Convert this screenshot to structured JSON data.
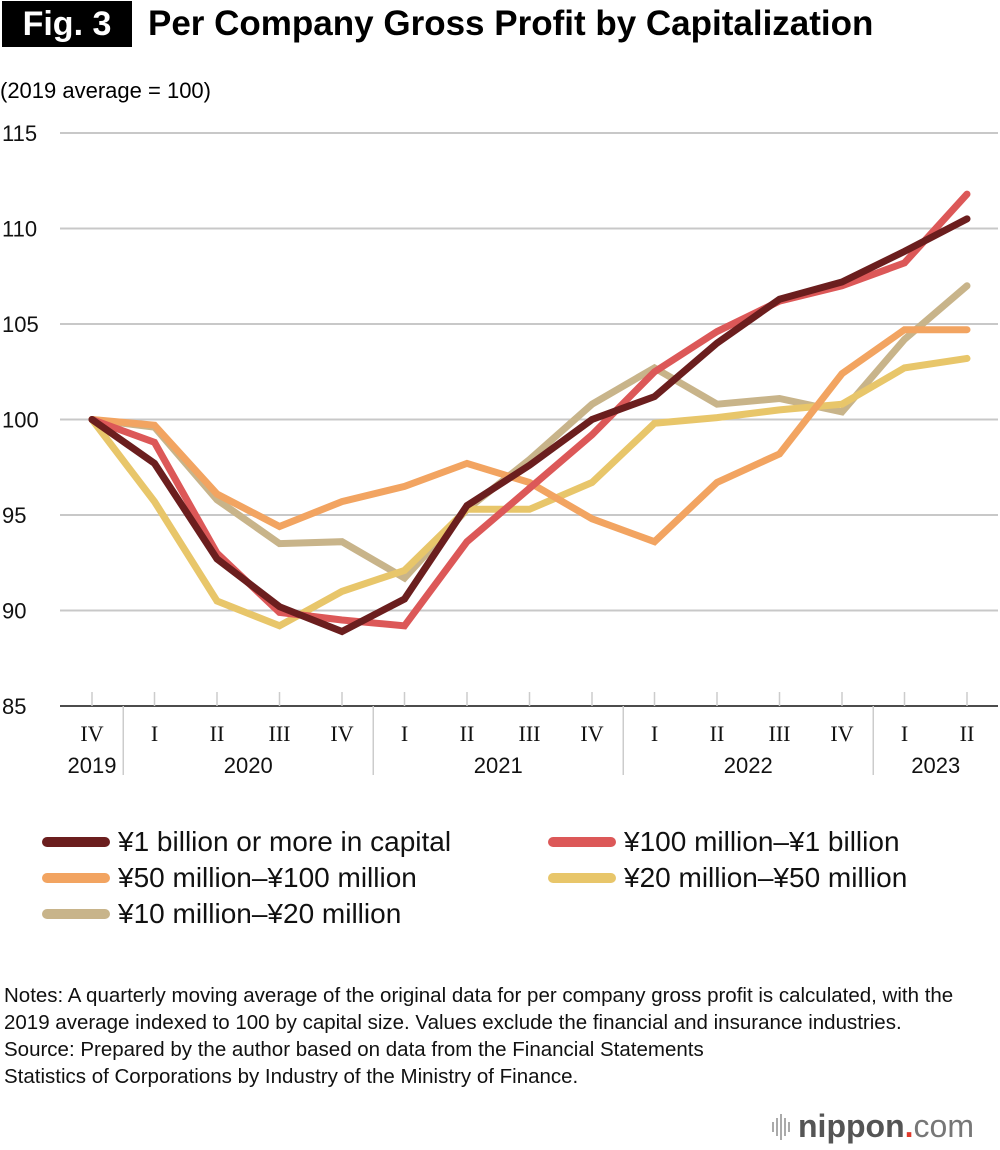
{
  "header": {
    "fig_label": "Fig. 3",
    "title": "Per Company Gross Profit by Capitalization",
    "unit_note": "(2019 average = 100)"
  },
  "chart_data": {
    "type": "line",
    "title": "Per Company Gross Profit by Capitalization",
    "ylabel": "(2019 average = 100)",
    "xlabel": "",
    "ylim": [
      85,
      115
    ],
    "yticks": [
      85,
      90,
      95,
      100,
      105,
      110,
      115
    ],
    "grid": true,
    "legend_position": "bottom",
    "x": [
      "IV 2019",
      "I 2020",
      "II 2020",
      "III 2020",
      "IV 2020",
      "I 2021",
      "II 2021",
      "III 2021",
      "IV 2021",
      "I 2022",
      "II 2022",
      "III 2022",
      "IV 2022",
      "I 2023",
      "II 2023"
    ],
    "quarter_labels": [
      "IV",
      "I",
      "II",
      "III",
      "IV",
      "I",
      "II",
      "III",
      "IV",
      "I",
      "II",
      "III",
      "IV",
      "I",
      "II"
    ],
    "year_groups": [
      {
        "label": "2019",
        "start": 0,
        "end": 0
      },
      {
        "label": "2020",
        "start": 1,
        "end": 4
      },
      {
        "label": "2021",
        "start": 5,
        "end": 8
      },
      {
        "label": "2022",
        "start": 9,
        "end": 12
      },
      {
        "label": "2023",
        "start": 13,
        "end": 14
      }
    ],
    "series": [
      {
        "name": "¥10 million–¥20 million",
        "color": "#c8b48a",
        "values": [
          100.0,
          99.6,
          95.8,
          93.5,
          93.6,
          91.7,
          95.3,
          97.9,
          100.8,
          102.7,
          100.8,
          101.1,
          100.4,
          104.2,
          107.0
        ]
      },
      {
        "name": "¥20 million–¥50 million",
        "color": "#e8c66a",
        "values": [
          100.0,
          95.7,
          90.5,
          89.2,
          91.0,
          92.1,
          95.3,
          95.3,
          96.7,
          99.8,
          100.1,
          100.5,
          100.8,
          102.7,
          103.2
        ]
      },
      {
        "name": "¥50 million–¥100 million",
        "color": "#f2a461",
        "values": [
          100.0,
          99.7,
          96.1,
          94.4,
          95.7,
          96.5,
          97.7,
          96.7,
          94.8,
          93.6,
          96.7,
          98.2,
          102.4,
          104.7,
          104.7
        ]
      },
      {
        "name": "¥100 million–¥1 billion",
        "color": "#dc5858",
        "values": [
          100.0,
          98.8,
          93.0,
          89.9,
          89.5,
          89.2,
          93.6,
          96.4,
          99.2,
          102.5,
          104.6,
          106.2,
          107.0,
          108.2,
          111.8
        ]
      },
      {
        "name": "¥1 billion or more in capital",
        "color": "#6b1e1e",
        "values": [
          100.0,
          97.7,
          92.7,
          90.2,
          88.9,
          90.6,
          95.5,
          97.6,
          100.0,
          101.2,
          104.0,
          106.3,
          107.2,
          108.8,
          110.5
        ]
      }
    ]
  },
  "legend": [
    {
      "label": "¥1 billion or more in capital",
      "color": "#6b1e1e"
    },
    {
      "label": "¥100 million–¥1 billion",
      "color": "#dc5858"
    },
    {
      "label": "¥50 million–¥100 million",
      "color": "#f2a461"
    },
    {
      "label": "¥20 million–¥50 million",
      "color": "#e8c66a"
    },
    {
      "label": "¥10 million–¥20 million",
      "color": "#c8b48a"
    }
  ],
  "notes": {
    "notes_text": "Notes: A quarterly moving average of the original data for per company gross profit is calculated, with the 2019 average indexed to 100 by capital size. Values exclude the financial and insurance industries.",
    "source_text": "Source: Prepared by the author based on data from the Financial Statements Statistics of Corporations by Industry of the Ministry of Finance."
  },
  "logo": {
    "brand": "nippon",
    "dot": ".",
    "tld": "com"
  }
}
